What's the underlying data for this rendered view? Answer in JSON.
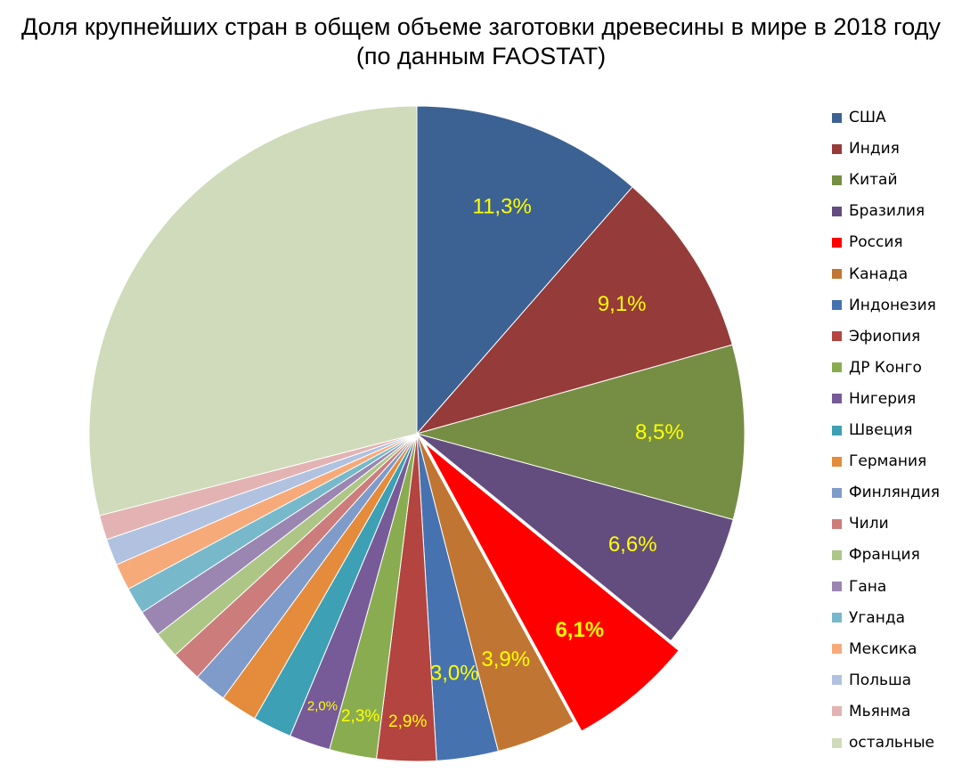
{
  "chart_data": {
    "type": "pie",
    "title": "Доля крупнейших стран в общем объеме заготовки древесины в мире в 2018 году",
    "subtitle": "(по данным FAOSTAT)",
    "label_color": "#ffff00",
    "highlight": "Россия",
    "legend_position": "right",
    "slices": [
      {
        "name": "США",
        "value": 11.3,
        "label": "11,3%",
        "color": "#3c6293"
      },
      {
        "name": "Индия",
        "value": 9.1,
        "label": "9,1%",
        "color": "#953b39"
      },
      {
        "name": "Китай",
        "value": 8.5,
        "label": "8,5%",
        "color": "#768e44"
      },
      {
        "name": "Бразилия",
        "value": 6.6,
        "label": "6,6%",
        "color": "#634d7e"
      },
      {
        "name": "Россия",
        "value": 6.1,
        "label": "6,1%",
        "color": "#ff0000"
      },
      {
        "name": "Канада",
        "value": 3.9,
        "label": "3,9%",
        "color": "#c07632"
      },
      {
        "name": "Индонезия",
        "value": 3.0,
        "label": "3,0%",
        "color": "#4672b0"
      },
      {
        "name": "Эфиопия",
        "value": 2.9,
        "label": "2,9%",
        "color": "#b4443f"
      },
      {
        "name": "ДР Конго",
        "value": 2.3,
        "label": "2,3%",
        "color": "#8aac50"
      },
      {
        "name": "Нигерия",
        "value": 2.0,
        "label": "2,0%",
        "color": "#775b99"
      },
      {
        "name": "Швеция",
        "value": 1.9,
        "label": "",
        "color": "#3da0b4"
      },
      {
        "name": "Германия",
        "value": 1.8,
        "label": "",
        "color": "#e48b3c"
      },
      {
        "name": "Финляндия",
        "value": 1.6,
        "label": "",
        "color": "#7e9bc9"
      },
      {
        "name": "Чили",
        "value": 1.5,
        "label": "",
        "color": "#cc7d7b"
      },
      {
        "name": "Франция",
        "value": 1.3,
        "label": "",
        "color": "#adc686"
      },
      {
        "name": "Гана",
        "value": 1.3,
        "label": "",
        "color": "#9a86b1"
      },
      {
        "name": "Уганда",
        "value": 1.3,
        "label": "",
        "color": "#77b9ca"
      },
      {
        "name": "Мексика",
        "value": 1.3,
        "label": "",
        "color": "#f6aa7a"
      },
      {
        "name": "Польша",
        "value": 1.3,
        "label": "",
        "color": "#b1c2e0"
      },
      {
        "name": "Мьянма",
        "value": 1.2,
        "label": "",
        "color": "#e3b3b3"
      },
      {
        "name": "остальные",
        "value": 28.7,
        "label": "",
        "color": "#cfdbba"
      }
    ]
  }
}
